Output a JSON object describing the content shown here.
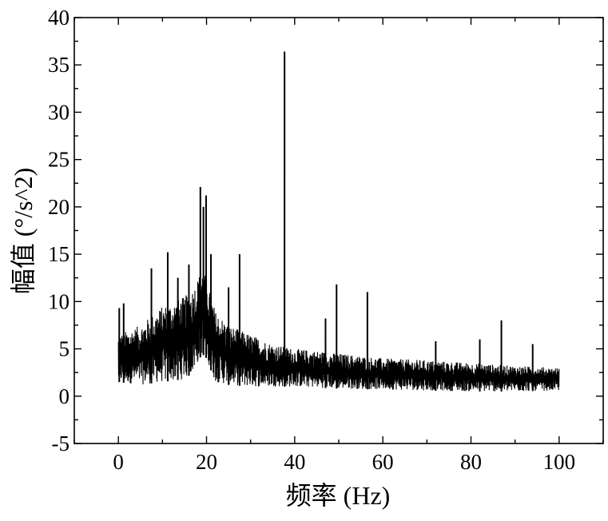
{
  "chart_data": {
    "type": "line",
    "title": "",
    "xlabel": "频率 (Hz)",
    "ylabel": "幅值 (°/s^2)",
    "xlim": [
      -10,
      110
    ],
    "ylim": [
      -5,
      40
    ],
    "xticks": [
      0,
      20,
      40,
      60,
      80,
      100
    ],
    "yticks": [
      -5,
      0,
      5,
      10,
      15,
      20,
      25,
      30,
      35,
      40
    ],
    "xtick_labels": [
      "0",
      "20",
      "40",
      "60",
      "80",
      "100"
    ],
    "ytick_labels": [
      "-5",
      "0",
      "5",
      "10",
      "15",
      "20",
      "25",
      "30",
      "35",
      "40"
    ],
    "grid": false,
    "legend": "none",
    "line_color": "#000000",
    "frequency_range": [
      0,
      100
    ],
    "envelope": {
      "x": [
        0,
        5,
        10,
        15,
        17,
        19,
        20,
        22,
        25,
        30,
        35,
        40,
        45,
        50,
        60,
        70,
        80,
        90,
        100
      ],
      "upper": [
        6.5,
        7.5,
        9.5,
        10.5,
        11.5,
        13.5,
        12.5,
        9.0,
        7.5,
        6.5,
        5.5,
        5.0,
        4.8,
        4.5,
        4.0,
        3.8,
        3.5,
        3.2,
        3.0
      ],
      "lower": [
        1.5,
        1.2,
        1.5,
        1.8,
        2.5,
        4.5,
        4.0,
        1.5,
        1.2,
        1.0,
        1.0,
        1.0,
        0.9,
        0.8,
        0.7,
        0.6,
        0.5,
        0.5,
        0.6
      ]
    },
    "peaks": [
      {
        "x": 0.2,
        "y": 9.3
      },
      {
        "x": 1.2,
        "y": 9.8
      },
      {
        "x": 7.5,
        "y": 13.5
      },
      {
        "x": 11.2,
        "y": 15.2
      },
      {
        "x": 13.5,
        "y": 12.5
      },
      {
        "x": 16.0,
        "y": 13.9
      },
      {
        "x": 18.6,
        "y": 22.1
      },
      {
        "x": 19.3,
        "y": 20.0
      },
      {
        "x": 19.9,
        "y": 21.2
      },
      {
        "x": 21.0,
        "y": 15.0
      },
      {
        "x": 25.0,
        "y": 11.5
      },
      {
        "x": 27.5,
        "y": 15.0
      },
      {
        "x": 37.7,
        "y": 36.4
      },
      {
        "x": 47.0,
        "y": 8.2
      },
      {
        "x": 49.5,
        "y": 11.8
      },
      {
        "x": 56.5,
        "y": 11.0
      },
      {
        "x": 72.0,
        "y": 5.8
      },
      {
        "x": 82.0,
        "y": 6.0
      },
      {
        "x": 86.9,
        "y": 8.0
      },
      {
        "x": 94.0,
        "y": 5.5
      }
    ]
  }
}
